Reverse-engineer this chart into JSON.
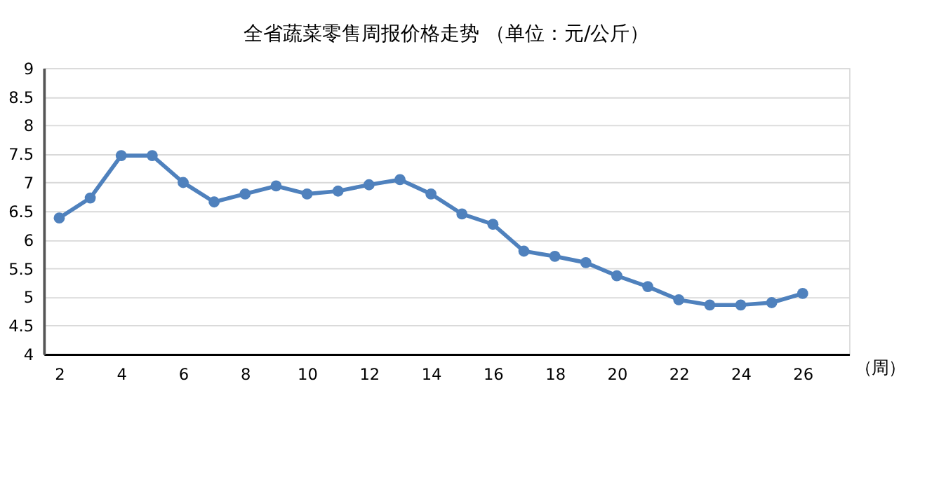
{
  "chart_data": {
    "type": "line",
    "title": "全省蔬菜零售周报价格走势    （单位：元/公斤）",
    "xlabel": "（周）",
    "x": [
      2,
      3,
      4,
      5,
      6,
      7,
      8,
      9,
      10,
      11,
      12,
      13,
      14,
      15,
      16,
      17,
      18,
      19,
      20,
      21,
      22,
      23,
      24,
      25,
      26
    ],
    "series": [
      {
        "color": "#4f81bd",
        "values": [
          6.38,
          6.73,
          7.47,
          7.47,
          7.0,
          6.66,
          6.8,
          6.94,
          6.8,
          6.85,
          6.96,
          7.05,
          6.8,
          6.45,
          6.27,
          5.8,
          5.71,
          5.6,
          5.37,
          5.18,
          4.95,
          4.86,
          4.86,
          4.9,
          5.06
        ]
      }
    ],
    "xlim": [
      1.5,
      27.5
    ],
    "xticks": [
      2,
      4,
      6,
      8,
      10,
      12,
      14,
      16,
      18,
      20,
      22,
      24,
      26
    ],
    "ylim": [
      4,
      9
    ],
    "yticks": [
      4,
      4.5,
      5,
      5.5,
      6,
      6.5,
      7,
      7.5,
      8,
      8.5,
      9
    ],
    "grid": "y",
    "marker": "circle",
    "line_style": "solid"
  }
}
